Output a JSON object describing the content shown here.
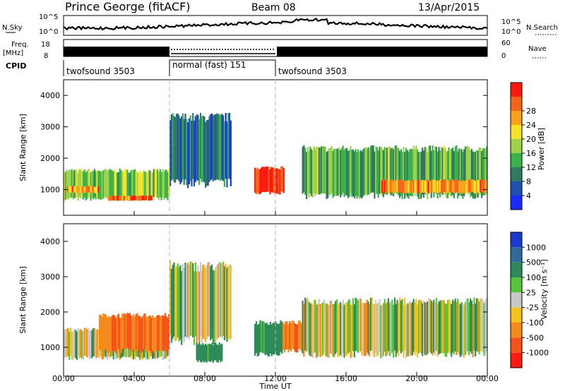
{
  "header": {
    "title": "Prince George (fitACF)",
    "beam": "Beam 08",
    "date": "13/Apr/2015"
  },
  "top_panels": {
    "nsky_label": "N.Sky",
    "nsky_ticks": [
      "10^5",
      "10^0"
    ],
    "nsearch_label": "N.Search",
    "freq_label_1": "Freq.",
    "freq_label_2": "[MHz]",
    "freq_ticks": [
      "18",
      "8"
    ],
    "nave_ticks": [
      "60",
      "0"
    ],
    "nave_label": "Nave",
    "cpid_label": "CPID",
    "cpid_segments": [
      {
        "label": "twofsound 3503",
        "start_h": 0,
        "end_h": 6
      },
      {
        "label": "normal (fast) 151",
        "start_h": 6,
        "end_h": 12
      },
      {
        "label": "twofsound 3503",
        "start_h": 12,
        "end_h": 24
      }
    ]
  },
  "x_axis": {
    "label": "Time UT",
    "ticks": [
      "00:00",
      "04:00",
      "08:00",
      "12:00",
      "16:00",
      "20:00",
      "00:00"
    ]
  },
  "power_colorbar": {
    "label": "Power [dB]",
    "ticks": [
      "4",
      "8",
      "12",
      "16",
      "20",
      "24",
      "28"
    ],
    "colors": [
      "#1a2bff",
      "#1f4fb0",
      "#2f7a60",
      "#3cb34a",
      "#9fd14a",
      "#f7e22a",
      "#f9a21e",
      "#f5651c",
      "#ff1a10"
    ]
  },
  "velocity_colorbar": {
    "label": "Velocity [m s⁻¹]",
    "ticks": [
      "1000",
      "500",
      "100",
      "25",
      "-25",
      "-100",
      "-500",
      "-1000"
    ],
    "colors": [
      "#1a3bcc",
      "#2f6a9a",
      "#2f8a5a",
      "#58c43a",
      "#c8c8c8",
      "#f5c21c",
      "#f58a1c",
      "#f5521c",
      "#ff1a10"
    ]
  },
  "chart_data": [
    {
      "type": "heatmap",
      "title": "",
      "xlabel": "Time UT",
      "ylabel": "Slant Range [km]",
      "xlim_hours": [
        0,
        24
      ],
      "ylim_km": [
        180,
        4500
      ],
      "yticks": [
        1000,
        2000,
        3000,
        4000
      ],
      "colorbar": "Power [dB]",
      "regions": [
        {
          "t0": 0.0,
          "t1": 6.0,
          "r0": 700,
          "r1": 1600,
          "power_db": 14
        },
        {
          "t0": 0.2,
          "t1": 2.0,
          "r0": 900,
          "r1": 1100,
          "power_db": 22
        },
        {
          "t0": 2.5,
          "t1": 5.0,
          "r0": 650,
          "r1": 800,
          "power_db": 24
        },
        {
          "t0": 6.0,
          "t1": 9.5,
          "r0": 1200,
          "r1": 3300,
          "power_db": 8
        },
        {
          "t0": 10.8,
          "t1": 12.5,
          "r0": 900,
          "r1": 1700,
          "power_db": 28
        },
        {
          "t0": 13.5,
          "t1": 24.0,
          "r0": 800,
          "r1": 2300,
          "power_db": 12
        },
        {
          "t0": 18.0,
          "t1": 24.0,
          "r0": 900,
          "r1": 1300,
          "power_db": 22
        }
      ]
    },
    {
      "type": "heatmap",
      "title": "",
      "xlabel": "Time UT",
      "ylabel": "Slant Range [km]",
      "xlim_hours": [
        0,
        24
      ],
      "ylim_km": [
        180,
        4500
      ],
      "yticks": [
        1000,
        2000,
        3000,
        4000
      ],
      "colorbar": "Velocity [m s⁻¹]",
      "regions": [
        {
          "t0": 0.0,
          "t1": 6.0,
          "r0": 700,
          "r1": 1500,
          "velocity_ms": 0
        },
        {
          "t0": 2.0,
          "t1": 6.0,
          "r0": 900,
          "r1": 1900,
          "velocity_ms": -300
        },
        {
          "t0": 6.0,
          "t1": 9.5,
          "r0": 1200,
          "r1": 3300,
          "velocity_ms": 0
        },
        {
          "t0": 7.5,
          "t1": 9.0,
          "r0": 600,
          "r1": 1100,
          "velocity_ms": 150
        },
        {
          "t0": 10.8,
          "t1": 12.4,
          "r0": 800,
          "r1": 1700,
          "velocity_ms": 150
        },
        {
          "t0": 12.4,
          "t1": 13.5,
          "r0": 900,
          "r1": 1700,
          "velocity_ms": -300
        },
        {
          "t0": 13.5,
          "t1": 24.0,
          "r0": 800,
          "r1": 2300,
          "velocity_ms": 0
        }
      ]
    }
  ]
}
